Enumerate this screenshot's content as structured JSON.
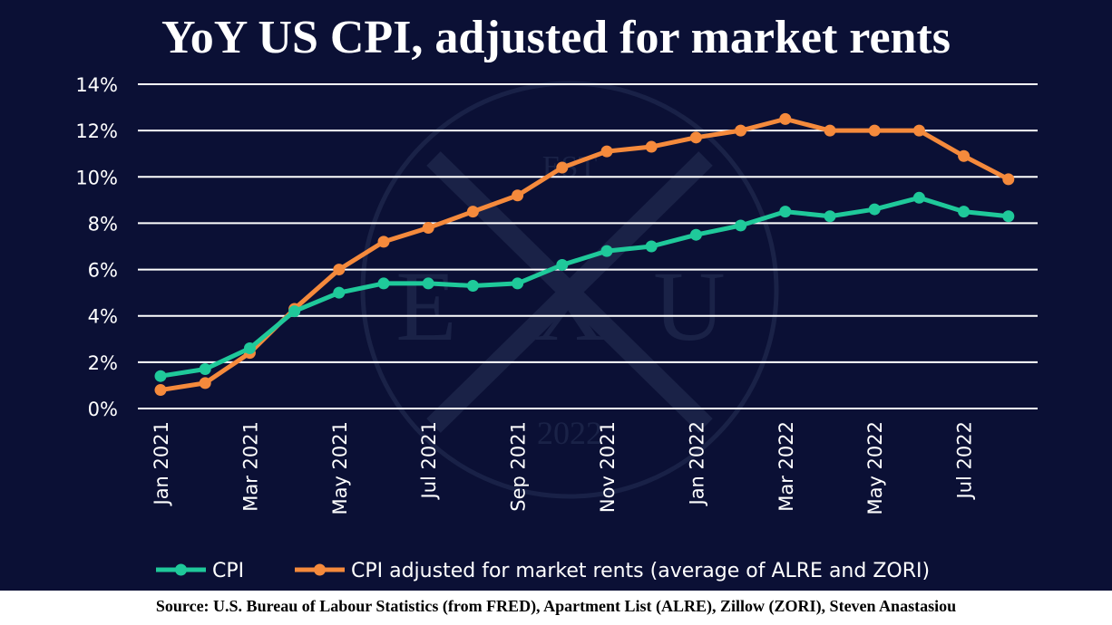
{
  "chart_data": {
    "type": "line",
    "title": "YoY US CPI, adjusted for market rents",
    "categories": [
      "Jan 2021",
      "Feb 2021",
      "Mar 2021",
      "Apr 2021",
      "May 2021",
      "Jun 2021",
      "Jul 2021",
      "Aug 2021",
      "Sep 2021",
      "Oct 2021",
      "Nov 2021",
      "Dec 2021",
      "Jan 2022",
      "Feb 2022",
      "Mar 2022",
      "Apr 2022",
      "May 2022",
      "Jun 2022",
      "Jul 2022",
      "Aug 2022"
    ],
    "x_tick_labels": [
      "Jan 2021",
      "Mar 2021",
      "May 2021",
      "Jul 2021",
      "Sep 2021",
      "Nov 2021",
      "Jan 2022",
      "Mar 2022",
      "May 2022",
      "Jul 2022"
    ],
    "y_ticks": [
      "0%",
      "2%",
      "4%",
      "6%",
      "8%",
      "10%",
      "12%",
      "14%"
    ],
    "ylim": [
      0,
      14
    ],
    "grid": "horizontal",
    "legend_position": "bottom",
    "series": [
      {
        "name": "CPI",
        "color": "#1fc99a",
        "values": [
          1.4,
          1.7,
          2.6,
          4.2,
          5.0,
          5.4,
          5.4,
          5.3,
          5.4,
          6.2,
          6.8,
          7.0,
          7.5,
          7.9,
          8.5,
          8.3,
          8.6,
          9.1,
          8.5,
          8.3
        ]
      },
      {
        "name": "CPI adjusted for market rents (average of ALRE and ZORI)",
        "color": "#f58a3c",
        "values": [
          0.8,
          1.1,
          2.4,
          4.3,
          6.0,
          7.2,
          7.8,
          8.5,
          9.2,
          10.4,
          11.1,
          11.3,
          11.7,
          12.0,
          12.5,
          12.0,
          12.0,
          12.0,
          10.9,
          9.9
        ]
      }
    ]
  },
  "source": "Source: U.S. Bureau of Labour Statistics (from FRED), Apartment List (ALRE), Zillow (ZORI), Steven Anastasiou",
  "watermark": {
    "top": "EST",
    "left": "E",
    "center": "X",
    "right": "U",
    "bottom": "2022"
  }
}
